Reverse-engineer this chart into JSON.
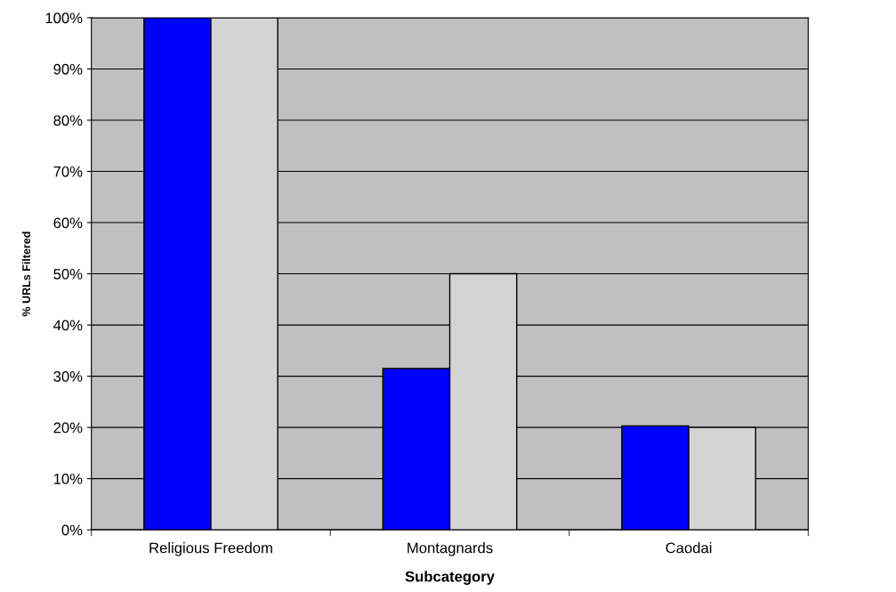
{
  "chart_data": {
    "type": "bar",
    "xlabel": "Subcategory",
    "ylabel": "% URLs Filtered",
    "categories": [
      "Religious Freedom",
      "Montagnards",
      "Caodai"
    ],
    "series": [
      {
        "color": "#0000ff",
        "values": [
          100,
          31.5,
          20.3
        ]
      },
      {
        "color": "#d4d4d4",
        "values": [
          100,
          50,
          20
        ]
      }
    ],
    "ylim": [
      0,
      100
    ],
    "yticks": [
      {
        "value": 0,
        "label": "0%"
      },
      {
        "value": 10,
        "label": "10%"
      },
      {
        "value": 20,
        "label": "20%"
      },
      {
        "value": 30,
        "label": "30%"
      },
      {
        "value": 40,
        "label": "40%"
      },
      {
        "value": 50,
        "label": "50%"
      },
      {
        "value": 60,
        "label": "60%"
      },
      {
        "value": 70,
        "label": "70%"
      },
      {
        "value": 80,
        "label": "80%"
      },
      {
        "value": 90,
        "label": "90%"
      },
      {
        "value": 100,
        "label": "100%"
      }
    ],
    "grid": "y"
  }
}
